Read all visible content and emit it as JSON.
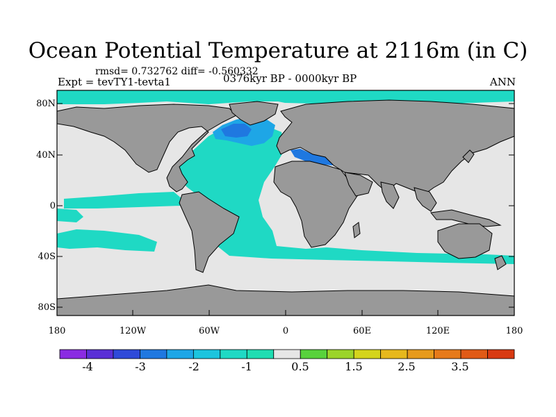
{
  "title": "Ocean Potential Temperature at 2116m (in C)",
  "stats": "rmsd= 0.732762 diff= -0.560332",
  "experiment": "Expt = tevTY1-tevta1",
  "period": "0376kyr BP - 0000kyr BP",
  "season": "ANN",
  "lat_ticks": [
    "80N",
    "40N",
    "0",
    "40S",
    "80S"
  ],
  "lon_ticks": [
    "180",
    "120W",
    "60W",
    "0",
    "60E",
    "120E",
    "180"
  ],
  "colorbar": {
    "labels": [
      "-4",
      "-3",
      "-2",
      "-1",
      "0.5",
      "1.5",
      "2.5",
      "3.5"
    ],
    "colors": [
      "#8a2be2",
      "#5a2fd6",
      "#2f4ad9",
      "#1f78e0",
      "#1ea6e6",
      "#1cc4de",
      "#1fd9c4",
      "#1fddb2",
      "#e6e6e6",
      "#58d23c",
      "#9bd42a",
      "#d4d41c",
      "#e6b81c",
      "#e69a1c",
      "#e67a1a",
      "#e05a16",
      "#d83a12"
    ]
  },
  "colors": {
    "land": "#999999",
    "no_change": "#e6e6e6",
    "cool_small": "#1fd9c4",
    "cool_mid": "#1ea6e6",
    "cool_strong": "#1f78e0",
    "warm": "#e05a16"
  }
}
